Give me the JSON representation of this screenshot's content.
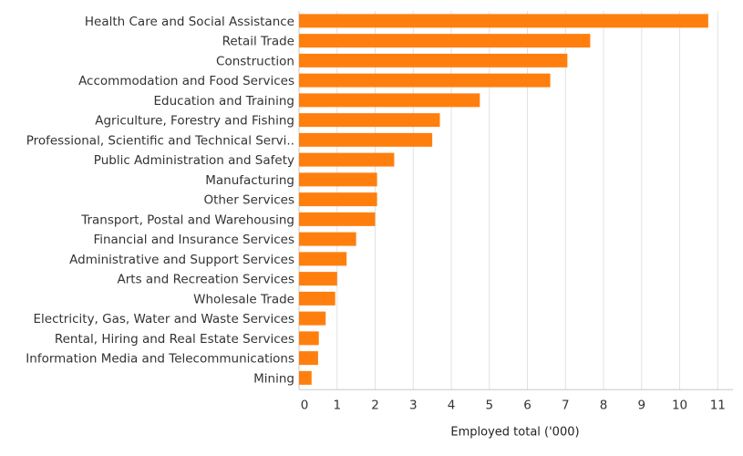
{
  "chart_data": {
    "type": "bar",
    "orientation": "horizontal",
    "title": "",
    "xlabel": "Employed total ('000)",
    "ylabel": "",
    "xlim": [
      0,
      11.4
    ],
    "x_ticks": [
      "0",
      "1",
      "2",
      "3",
      "4",
      "5",
      "6",
      "7",
      "8",
      "9",
      "10",
      "11"
    ],
    "grid": true,
    "bar_color": "#ff7f0e",
    "categories": [
      "Health Care and Social Assistance",
      "Retail Trade",
      "Construction",
      "Accommodation and Food Services",
      "Education and Training",
      "Agriculture, Forestry and Fishing",
      "Professional, Scientific and Technical Servi..",
      "Public Administration and Safety",
      "Manufacturing",
      "Other Services",
      "Transport, Postal and Warehousing",
      "Financial and Insurance Services",
      "Administrative and Support Services",
      "Arts and Recreation Services",
      "Wholesale Trade",
      "Electricity, Gas, Water and Waste Services",
      "Rental, Hiring and Real Estate Services",
      "Information Media and Telecommunications",
      "Mining"
    ],
    "values": [
      10.75,
      7.65,
      7.05,
      6.6,
      4.75,
      3.7,
      3.5,
      2.5,
      2.05,
      2.05,
      2.0,
      1.5,
      1.25,
      1.0,
      0.95,
      0.7,
      0.52,
      0.5,
      0.33
    ]
  }
}
